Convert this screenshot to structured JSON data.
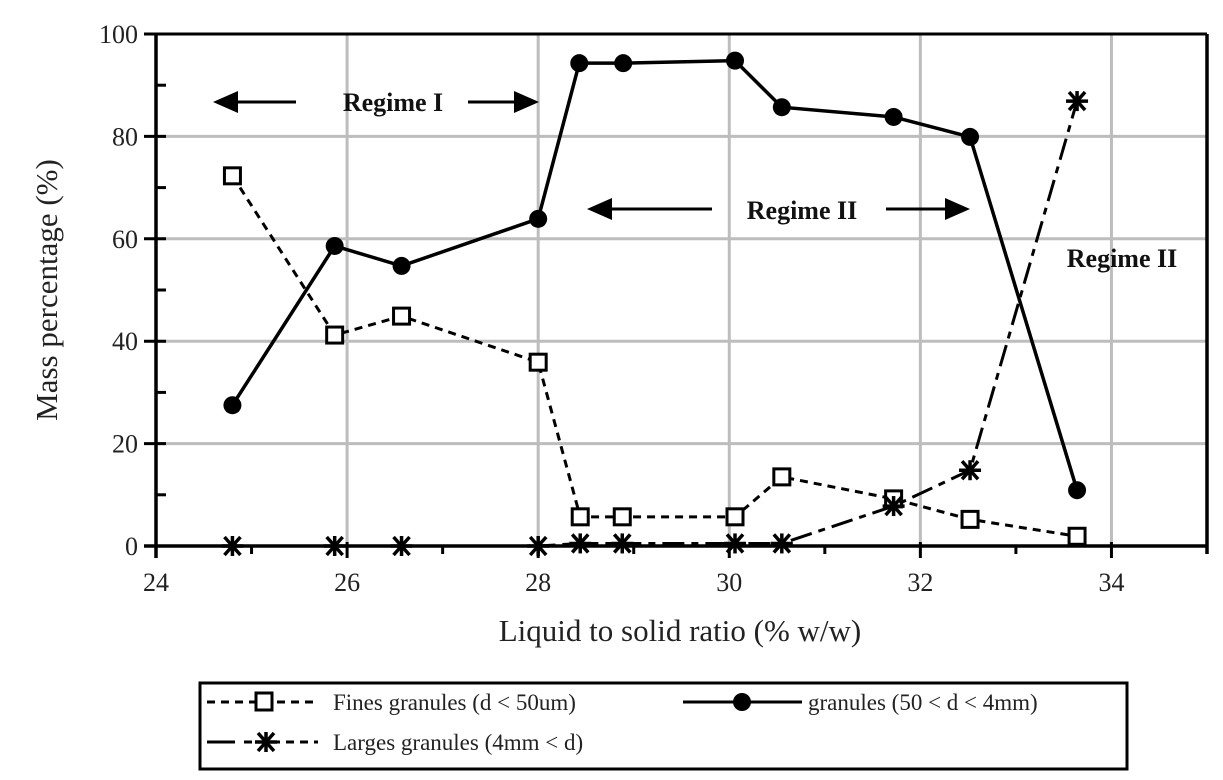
{
  "chart_data": {
    "type": "line",
    "title": "",
    "xlabel": "Liquid to solid ratio (% w/w)",
    "ylabel": "Mass percentage (%)",
    "xlim": [
      24,
      35
    ],
    "ylim": [
      0,
      100
    ],
    "x_ticks": [
      24,
      26,
      28,
      30,
      32,
      34
    ],
    "y_ticks": [
      0,
      20,
      40,
      60,
      80,
      100
    ],
    "grid": true,
    "legend_position": "bottom",
    "series": [
      {
        "name": "Fines granules (d < 50um)",
        "marker": "open-square",
        "line_style": "short-dash",
        "x": [
          24.8,
          25.87,
          26.57,
          28.0,
          28.44,
          28.88,
          30.06,
          30.55,
          31.72,
          32.52,
          33.64
        ],
        "values": [
          72.3,
          41.2,
          44.9,
          35.9,
          5.7,
          5.7,
          5.7,
          13.5,
          9.2,
          5.2,
          1.9
        ]
      },
      {
        "name": "granules (50 < d < 4mm)",
        "marker": "filled-circle",
        "line_style": "solid",
        "x": [
          24.8,
          25.87,
          26.57,
          28.0,
          28.43,
          28.89,
          30.06,
          30.55,
          31.72,
          32.52,
          33.64
        ],
        "values": [
          27.5,
          58.6,
          54.7,
          63.9,
          94.3,
          94.3,
          94.8,
          85.7,
          83.8,
          79.9,
          10.9
        ]
      },
      {
        "name": "Larges granules (4mm < d)",
        "marker": "asterisk",
        "line_style": "long-short-dash",
        "x": [
          24.8,
          25.87,
          26.57,
          28.0,
          28.44,
          28.88,
          30.06,
          30.55,
          31.72,
          32.52,
          33.64
        ],
        "values": [
          0,
          0,
          0,
          0,
          0.5,
          0.5,
          0.5,
          0.5,
          7.8,
          14.8,
          86.9
        ]
      }
    ],
    "annotations": [
      {
        "text": "Regime I",
        "arrows": "both",
        "x_from": 24.6,
        "x_to": 28.0,
        "y": 86.6
      },
      {
        "text": "Regime II",
        "arrows": "both",
        "x_from": 28.5,
        "x_to": 32.5,
        "y": 65.2
      },
      {
        "text": "Regime II",
        "arrows": "none",
        "x": 34.0,
        "y": 56.5
      }
    ]
  },
  "labels": {
    "xlabel": "Liquid to solid ratio (% w/w)",
    "ylabel": "Mass percentage (%)",
    "regime1": "Regime I",
    "regime2": "Regime II",
    "regime3": "Regime II"
  },
  "legend": {
    "fines": "Fines granules (d < 50um)",
    "granules": "granules (50 < d < 4mm)",
    "larges": "Larges granules (4mm < d)"
  },
  "colors": {
    "line": "#000000",
    "grid": "#bdbdbd",
    "text": "#222222"
  }
}
